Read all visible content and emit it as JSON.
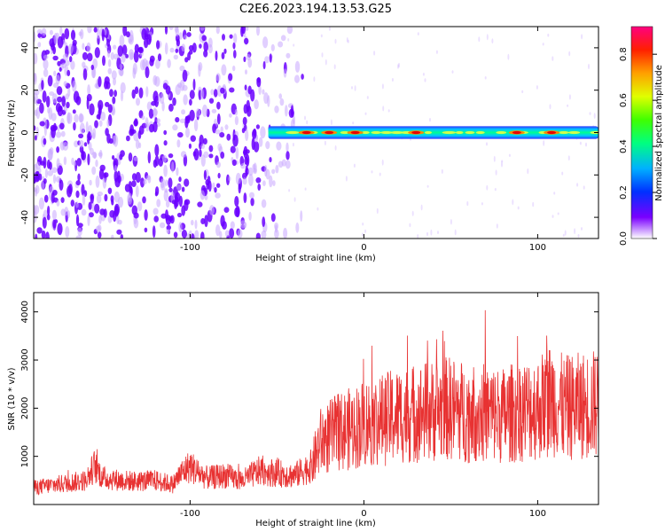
{
  "title": "C2E6.2023.194.13.53.G25",
  "colors": {
    "snr_line": "#e83232",
    "blob_dark": "#6a00ff",
    "blob_light": "#c9a8ff"
  },
  "chart_data": [
    {
      "type": "heatmap",
      "title": "C2E6.2023.194.13.53.G25",
      "xlabel": "Height of straight line (km)",
      "ylabel": "Frequency (Hz)",
      "xlim": [
        -190,
        135
      ],
      "ylim": [
        -50,
        50
      ],
      "xticks": [
        -100,
        0,
        100
      ],
      "xtick_labels": [
        "-100",
        "0",
        "100"
      ],
      "yticks": [
        -40,
        -20,
        0,
        20,
        40
      ],
      "ytick_labels": [
        "-40",
        "-20",
        "0",
        "20",
        "40"
      ],
      "grid": false,
      "colorbar": {
        "label": "Normalized spectral amplitude",
        "range": [
          0,
          0.92
        ],
        "ticks": [
          0,
          0.2,
          0.4,
          0.6,
          0.8
        ],
        "tick_labels": [
          "0.0",
          "0.2",
          "0.4",
          "0.6",
          "0.8"
        ],
        "colormap": "rainbow (white-purple-blue-cyan-green-yellow-orange-red-magenta)"
      },
      "features": {
        "noise_region_x": [
          -190,
          -45
        ],
        "signal_band_center_hz": 0,
        "signal_band_halfwidth_hz": 2,
        "signal_band_x": [
          -55,
          135
        ],
        "peak_x": [
          -33,
          -20,
          -5,
          30,
          88,
          108
        ]
      }
    },
    {
      "type": "line",
      "xlabel": "Height of straight line (km)",
      "ylabel": "SNR (10 * v/v)",
      "xlim": [
        -190,
        135
      ],
      "ylim": [
        0,
        4400
      ],
      "xticks": [
        -100,
        0,
        100
      ],
      "xtick_labels": [
        "-100",
        "0",
        "100"
      ],
      "yticks": [
        1000,
        2000,
        3000,
        4000
      ],
      "ytick_labels": [
        "1000",
        "2000",
        "3000",
        "4000"
      ],
      "grid": false,
      "series": [
        {
          "color": "#e83232",
          "x": [
            -190,
            -180,
            -170,
            -160,
            -155,
            -150,
            -140,
            -130,
            -120,
            -110,
            -105,
            -100,
            -95,
            -90,
            -80,
            -70,
            -60,
            -50,
            -40,
            -30,
            -25,
            -20,
            -15,
            -10,
            -5,
            0,
            10,
            20,
            30,
            40,
            50,
            60,
            70,
            80,
            90,
            100,
            108,
            115,
            125,
            135
          ],
          "y": [
            350,
            400,
            450,
            500,
            800,
            550,
            500,
            480,
            500,
            420,
            650,
            800,
            650,
            550,
            600,
            500,
            700,
            650,
            600,
            800,
            1300,
            1400,
            1500,
            1550,
            1600,
            1700,
            1750,
            1850,
            1900,
            1950,
            2000,
            1900,
            1900,
            1850,
            1950,
            2000,
            2200,
            2000,
            2050,
            2100
          ]
        }
      ]
    }
  ]
}
